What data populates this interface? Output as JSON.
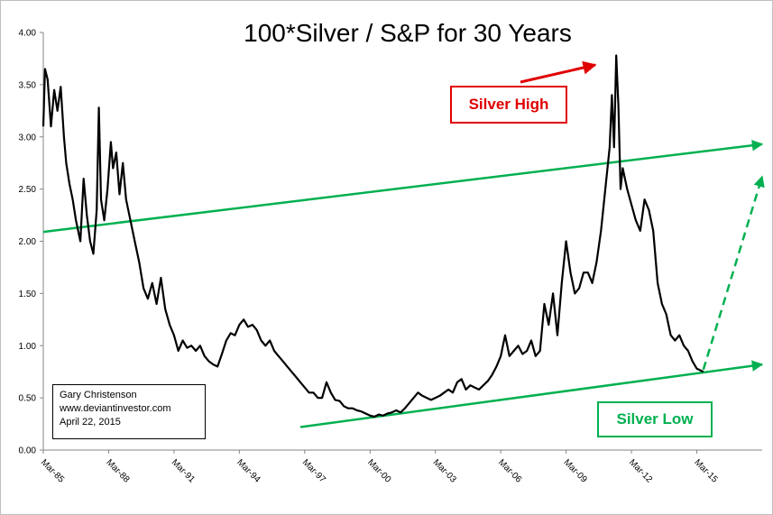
{
  "chart_data": {
    "type": "line",
    "title": "100*Silver / S&P for 30 Years",
    "xlabel": "",
    "ylabel": "",
    "ylim": [
      0,
      4
    ],
    "y_ticks": [
      "0.00",
      "0.50",
      "1.00",
      "1.50",
      "2.00",
      "2.50",
      "3.00",
      "3.50",
      "4.00"
    ],
    "x_ticks": [
      "Mar-85",
      "Mar-88",
      "Mar-91",
      "Mar-94",
      "Mar-97",
      "Mar-00",
      "Mar-03",
      "Mar-06",
      "Mar-09",
      "Mar-12",
      "Mar-15"
    ],
    "grid": false,
    "series": [
      {
        "values": [
          [
            1985.0,
            3.1
          ],
          [
            1985.08,
            3.65
          ],
          [
            1985.2,
            3.55
          ],
          [
            1985.35,
            3.1
          ],
          [
            1985.5,
            3.45
          ],
          [
            1985.65,
            3.25
          ],
          [
            1985.8,
            3.48
          ],
          [
            1985.95,
            3.0
          ],
          [
            1986.05,
            2.75
          ],
          [
            1986.2,
            2.55
          ],
          [
            1986.35,
            2.4
          ],
          [
            1986.5,
            2.2
          ],
          [
            1986.7,
            2.0
          ],
          [
            1986.85,
            2.6
          ],
          [
            1987.0,
            2.25
          ],
          [
            1987.15,
            2.0
          ],
          [
            1987.3,
            1.88
          ],
          [
            1987.45,
            2.3
          ],
          [
            1987.55,
            3.28
          ],
          [
            1987.65,
            2.4
          ],
          [
            1987.8,
            2.2
          ],
          [
            1987.95,
            2.5
          ],
          [
            1988.1,
            2.95
          ],
          [
            1988.2,
            2.7
          ],
          [
            1988.35,
            2.85
          ],
          [
            1988.5,
            2.45
          ],
          [
            1988.65,
            2.75
          ],
          [
            1988.8,
            2.4
          ],
          [
            1989.0,
            2.2
          ],
          [
            1989.2,
            2.0
          ],
          [
            1989.4,
            1.8
          ],
          [
            1989.6,
            1.55
          ],
          [
            1989.8,
            1.45
          ],
          [
            1990.0,
            1.6
          ],
          [
            1990.2,
            1.4
          ],
          [
            1990.4,
            1.65
          ],
          [
            1990.6,
            1.35
          ],
          [
            1990.8,
            1.2
          ],
          [
            1991.0,
            1.1
          ],
          [
            1991.2,
            0.95
          ],
          [
            1991.4,
            1.05
          ],
          [
            1991.6,
            0.98
          ],
          [
            1991.8,
            1.0
          ],
          [
            1992.0,
            0.95
          ],
          [
            1992.2,
            1.0
          ],
          [
            1992.4,
            0.9
          ],
          [
            1992.6,
            0.85
          ],
          [
            1992.8,
            0.82
          ],
          [
            1993.0,
            0.8
          ],
          [
            1993.2,
            0.92
          ],
          [
            1993.4,
            1.05
          ],
          [
            1993.6,
            1.12
          ],
          [
            1993.8,
            1.1
          ],
          [
            1994.0,
            1.2
          ],
          [
            1994.2,
            1.25
          ],
          [
            1994.4,
            1.18
          ],
          [
            1994.6,
            1.2
          ],
          [
            1994.8,
            1.15
          ],
          [
            1995.0,
            1.05
          ],
          [
            1995.2,
            1.0
          ],
          [
            1995.4,
            1.05
          ],
          [
            1995.6,
            0.95
          ],
          [
            1995.8,
            0.9
          ],
          [
            1996.0,
            0.85
          ],
          [
            1996.2,
            0.8
          ],
          [
            1996.4,
            0.75
          ],
          [
            1996.6,
            0.7
          ],
          [
            1996.8,
            0.65
          ],
          [
            1997.0,
            0.6
          ],
          [
            1997.2,
            0.55
          ],
          [
            1997.4,
            0.55
          ],
          [
            1997.6,
            0.5
          ],
          [
            1997.8,
            0.5
          ],
          [
            1998.0,
            0.65
          ],
          [
            1998.2,
            0.55
          ],
          [
            1998.4,
            0.48
          ],
          [
            1998.6,
            0.47
          ],
          [
            1998.8,
            0.42
          ],
          [
            1999.0,
            0.4
          ],
          [
            1999.2,
            0.4
          ],
          [
            1999.4,
            0.38
          ],
          [
            1999.6,
            0.37
          ],
          [
            1999.8,
            0.35
          ],
          [
            2000.0,
            0.33
          ],
          [
            2000.2,
            0.32
          ],
          [
            2000.4,
            0.34
          ],
          [
            2000.6,
            0.33
          ],
          [
            2000.8,
            0.35
          ],
          [
            2001.0,
            0.36
          ],
          [
            2001.2,
            0.38
          ],
          [
            2001.4,
            0.36
          ],
          [
            2001.6,
            0.4
          ],
          [
            2001.8,
            0.45
          ],
          [
            2002.0,
            0.5
          ],
          [
            2002.2,
            0.55
          ],
          [
            2002.4,
            0.52
          ],
          [
            2002.6,
            0.5
          ],
          [
            2002.8,
            0.48
          ],
          [
            2003.0,
            0.5
          ],
          [
            2003.2,
            0.52
          ],
          [
            2003.4,
            0.55
          ],
          [
            2003.6,
            0.58
          ],
          [
            2003.8,
            0.55
          ],
          [
            2004.0,
            0.65
          ],
          [
            2004.2,
            0.68
          ],
          [
            2004.4,
            0.58
          ],
          [
            2004.6,
            0.62
          ],
          [
            2004.8,
            0.6
          ],
          [
            2005.0,
            0.58
          ],
          [
            2005.2,
            0.62
          ],
          [
            2005.4,
            0.66
          ],
          [
            2005.6,
            0.72
          ],
          [
            2005.8,
            0.8
          ],
          [
            2006.0,
            0.9
          ],
          [
            2006.2,
            1.1
          ],
          [
            2006.4,
            0.9
          ],
          [
            2006.6,
            0.95
          ],
          [
            2006.8,
            1.0
          ],
          [
            2007.0,
            0.92
          ],
          [
            2007.2,
            0.95
          ],
          [
            2007.4,
            1.05
          ],
          [
            2007.6,
            0.9
          ],
          [
            2007.8,
            0.95
          ],
          [
            2008.0,
            1.4
          ],
          [
            2008.2,
            1.2
          ],
          [
            2008.4,
            1.5
          ],
          [
            2008.6,
            1.1
          ],
          [
            2008.8,
            1.6
          ],
          [
            2009.0,
            2.0
          ],
          [
            2009.2,
            1.7
          ],
          [
            2009.4,
            1.5
          ],
          [
            2009.6,
            1.55
          ],
          [
            2009.8,
            1.7
          ],
          [
            2010.0,
            1.7
          ],
          [
            2010.2,
            1.6
          ],
          [
            2010.4,
            1.8
          ],
          [
            2010.6,
            2.1
          ],
          [
            2010.8,
            2.5
          ],
          [
            2011.0,
            2.9
          ],
          [
            2011.1,
            3.4
          ],
          [
            2011.2,
            2.9
          ],
          [
            2011.3,
            3.78
          ],
          [
            2011.4,
            3.3
          ],
          [
            2011.5,
            2.5
          ],
          [
            2011.6,
            2.7
          ],
          [
            2011.8,
            2.5
          ],
          [
            2012.0,
            2.35
          ],
          [
            2012.2,
            2.2
          ],
          [
            2012.4,
            2.1
          ],
          [
            2012.6,
            2.4
          ],
          [
            2012.8,
            2.3
          ],
          [
            2013.0,
            2.1
          ],
          [
            2013.2,
            1.6
          ],
          [
            2013.4,
            1.4
          ],
          [
            2013.6,
            1.3
          ],
          [
            2013.8,
            1.1
          ],
          [
            2014.0,
            1.05
          ],
          [
            2014.2,
            1.1
          ],
          [
            2014.4,
            1.0
          ],
          [
            2014.6,
            0.95
          ],
          [
            2014.8,
            0.85
          ],
          [
            2015.0,
            0.78
          ],
          [
            2015.2,
            0.76
          ],
          [
            2015.3,
            0.75
          ]
        ]
      }
    ],
    "trend_lines": [
      {
        "color": "#00b050",
        "style": "solid",
        "from": [
          1985.0,
          2.09
        ],
        "to": [
          2018.0,
          2.93
        ]
      },
      {
        "color": "#00b050",
        "style": "solid",
        "from": [
          1996.8,
          0.22
        ],
        "to": [
          2018.0,
          0.82
        ]
      },
      {
        "color": "#00b050",
        "style": "dashed",
        "from": [
          2015.3,
          0.77
        ],
        "to": [
          2018.0,
          2.62
        ]
      }
    ],
    "annotations": {
      "silver_high": "Silver High",
      "silver_low": "Silver Low",
      "high_color": "#e00000",
      "low_color": "#00b050"
    }
  },
  "info_box": {
    "line1": "Gary Christenson",
    "line2": "www.deviantinvestor.com",
    "line3": "April 22, 2015"
  }
}
